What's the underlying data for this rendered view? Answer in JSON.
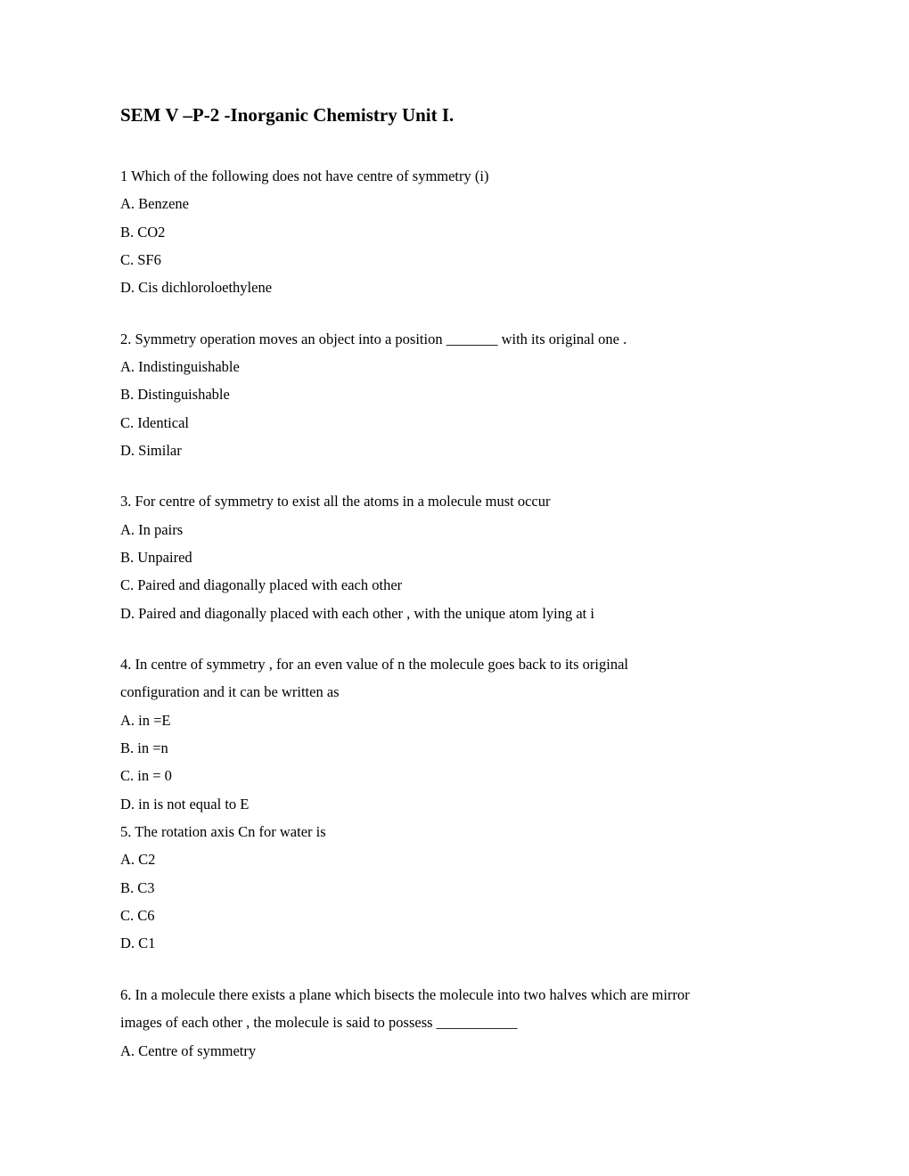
{
  "title": "SEM V –P-2 -Inorganic Chemistry Unit I.",
  "q1": {
    "text": "1  Which of the following does not have centre of symmetry (i)",
    "a": "A. Benzene",
    "b": "B. CO2",
    "c": "C. SF6",
    "d": "D. Cis dichloroloethylene"
  },
  "q2": {
    "text": "2. Symmetry operation moves an object into a position _______ with its original one .",
    "a": "A. Indistinguishable",
    "b": "B. Distinguishable",
    "c": "C. Identical",
    "d": "D. Similar"
  },
  "q3": {
    "text": "3. For centre of symmetry to exist all the atoms in a molecule must occur",
    "a": "A. In pairs",
    "b": "B. Unpaired",
    "c": "C. Paired and diagonally placed with each other",
    "d": "D. Paired and diagonally placed with each other , with the unique atom lying at i"
  },
  "q4": {
    "text1": "4. In centre of symmetry , for an even value of n the molecule goes back to its original",
    "text2": "configuration and it can be written as",
    "a": "A. in =E",
    "b": "B. in =n",
    "c": "C. in = 0",
    "d": "D. in is not equal to E"
  },
  "q5": {
    "text": "5. The rotation axis Cn for water is",
    "a": "A. C2",
    "b": "B. C3",
    "c": "C. C6",
    "d": "D. C1"
  },
  "q6": {
    "text1": "6. In a molecule there exists a plane which bisects the molecule into two halves which are mirror",
    "text2": "images of each other , the molecule is said to possess ___________",
    "a": "A. Centre of symmetry"
  }
}
